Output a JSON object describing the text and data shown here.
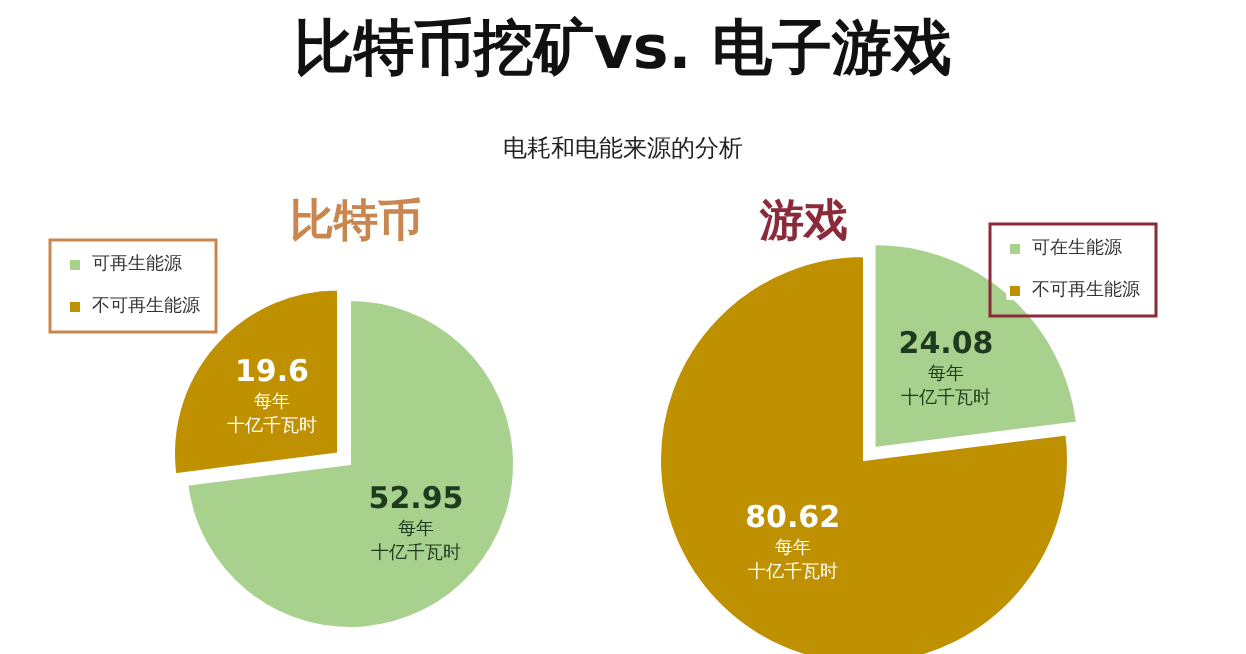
{
  "chart_data": [
    {
      "type": "pie",
      "title": "比特币",
      "annotations": [
        "比特币挖矿vs. 电子游戏",
        "电耗和电能来源的分析"
      ],
      "categories": [
        "可再生能源",
        "不可再生能源"
      ],
      "values": [
        52.95,
        19.6
      ],
      "colors": [
        "#a9d18e",
        "#bf9000"
      ],
      "value_labels": [
        "52.95每年十亿千瓦时",
        "19.6每年十亿千瓦时"
      ],
      "legend": "top left"
    },
    {
      "type": "pie",
      "title": "游戏",
      "categories": [
        "可在生能源",
        "不可再生能源"
      ],
      "values": [
        24.08,
        80.62
      ],
      "colors": [
        "#a9d18e",
        "#bf9000"
      ],
      "value_labels": [
        "24.08每年十亿千瓦时",
        "80.62每年十亿千瓦时"
      ],
      "legend": "top right"
    }
  ]
}
